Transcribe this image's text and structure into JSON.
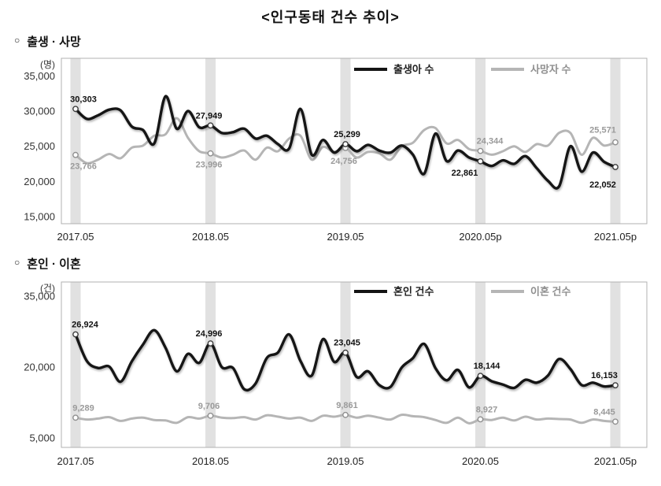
{
  "page": {
    "title": "<인구동태 건수 추이>",
    "sections": [
      {
        "bullet": "○",
        "label": "출생 · 사망"
      },
      {
        "bullet": "○",
        "label": "혼인 · 이혼"
      }
    ]
  },
  "colors": {
    "band": "#e1e1e1",
    "plot_border": "#b0b0b0",
    "axis_text": "#333333",
    "primary_line": "#141414",
    "secondary_line": "#b5b5b5",
    "primary_label": "#111111",
    "secondary_label": "#9a9a9a"
  },
  "chart_data": [
    {
      "type": "line",
      "title": "출생·사망",
      "unit_label": "(명)",
      "x_tick_labels": [
        "2017.05",
        "2018.05",
        "2019.05",
        "2020.05p",
        "2021.05p"
      ],
      "x_tick_indices": [
        0,
        12,
        24,
        36,
        48
      ],
      "y_ticks": [
        "35,000",
        "30,000",
        "25,000",
        "20,000",
        "15,000"
      ],
      "y_tick_values": [
        35000,
        30000,
        25000,
        20000,
        15000
      ],
      "ylim": [
        14000,
        37500
      ],
      "marker_indices": [
        0,
        12,
        24,
        36,
        48
      ],
      "legend": [
        {
          "key": "births",
          "label": "출생아 수",
          "color": "#141414",
          "text_color": "#222222"
        },
        {
          "key": "deaths",
          "label": "사망자 수",
          "color": "#b5b5b5",
          "text_color": "#8f8f8f"
        }
      ],
      "series": [
        {
          "key": "deaths",
          "name": "사망자 수",
          "color": "#b5b5b5",
          "width": 3,
          "shadow": false,
          "marker_stroke": "#8f8f8f",
          "label_color": "#9a9a9a",
          "values": [
            23766,
            22600,
            23100,
            23900,
            23300,
            24800,
            25100,
            26500,
            26700,
            29000,
            26200,
            24300,
            23996,
            23400,
            23800,
            24400,
            23100,
            24800,
            24300,
            26100,
            26500,
            23100,
            24900,
            24200,
            24756,
            23400,
            24200,
            24000,
            23100,
            25000,
            25500,
            27300,
            27600,
            25400,
            25900,
            24600,
            24344,
            23800,
            24300,
            25000,
            24200,
            25300,
            25100,
            26900,
            26900,
            23800,
            26200,
            25100,
            25571
          ],
          "annotations": [
            {
              "i": 0,
              "text": "23,766",
              "pos": "below",
              "dx": 10
            },
            {
              "i": 12,
              "text": "23,996",
              "pos": "below",
              "dx": -2
            },
            {
              "i": 24,
              "text": "24,756",
              "pos": "below",
              "dx": -2,
              "dy": 20
            },
            {
              "i": 36,
              "text": "24,344",
              "pos": "above",
              "dx": 12
            },
            {
              "i": 48,
              "text": "25,571",
              "pos": "above",
              "dx": -16,
              "dy": -12
            }
          ]
        },
        {
          "key": "births",
          "name": "출생아 수",
          "color": "#141414",
          "width": 3.4,
          "shadow": true,
          "marker_stroke": "#3c3c3c",
          "label_color": "#111111",
          "values": [
            30303,
            28900,
            29400,
            30200,
            30100,
            27800,
            27300,
            25400,
            32100,
            27500,
            30000,
            27700,
            27949,
            26900,
            27000,
            27500,
            26100,
            26500,
            25300,
            24700,
            30300,
            23800,
            25900,
            24100,
            25299,
            24300,
            25200,
            24400,
            24100,
            25100,
            23800,
            21100,
            26800,
            22900,
            24400,
            23400,
            22861,
            22200,
            23000,
            22500,
            23600,
            21900,
            20100,
            19300,
            25000,
            21400,
            24100,
            22800,
            22052
          ],
          "annotations": [
            {
              "i": 0,
              "text": "30,303",
              "pos": "above",
              "dx": 10
            },
            {
              "i": 12,
              "text": "27,949",
              "pos": "above",
              "dx": -2
            },
            {
              "i": 24,
              "text": "25,299",
              "pos": "above",
              "dx": 2
            },
            {
              "i": 36,
              "text": "22,861",
              "pos": "below",
              "dx": -20
            },
            {
              "i": 48,
              "text": "22,052",
              "pos": "below",
              "dx": -16,
              "dy": 26
            }
          ]
        }
      ]
    },
    {
      "type": "line",
      "title": "혼인·이혼",
      "unit_label": "(건)",
      "x_tick_labels": [
        "2017.05",
        "2018.05",
        "2019.05",
        "2020.05",
        "2021.05p"
      ],
      "x_tick_indices": [
        0,
        12,
        24,
        36,
        48
      ],
      "y_ticks": [
        "35,000",
        "20,000",
        "5,000"
      ],
      "y_tick_values": [
        35000,
        20000,
        5000
      ],
      "ylim": [
        3000,
        38000
      ],
      "marker_indices": [
        0,
        12,
        24,
        36,
        48
      ],
      "legend": [
        {
          "key": "marriages",
          "label": "혼인 건수",
          "color": "#141414",
          "text_color": "#222222"
        },
        {
          "key": "divorces",
          "label": "이혼 건수",
          "color": "#b5b5b5",
          "text_color": "#8f8f8f"
        }
      ],
      "series": [
        {
          "key": "divorces",
          "name": "이혼 건수",
          "color": "#b5b5b5",
          "width": 3,
          "shadow": false,
          "marker_stroke": "#8f8f8f",
          "label_color": "#9a9a9a",
          "values": [
            9289,
            8900,
            9100,
            9400,
            8600,
            9100,
            9300,
            8800,
            8700,
            8200,
            9400,
            9100,
            9706,
            9300,
            9200,
            9400,
            8900,
            9800,
            9500,
            9100,
            9300,
            8600,
            9700,
            9500,
            9861,
            9300,
            9700,
            9300,
            8900,
            9900,
            9600,
            9400,
            8800,
            8200,
            9300,
            8100,
            8927,
            8800,
            9300,
            8700,
            9500,
            8900,
            9100,
            9000,
            8900,
            8200,
            8900,
            8600,
            8445
          ],
          "annotations": [
            {
              "i": 0,
              "text": "9,289",
              "pos": "above",
              "dx": 10
            },
            {
              "i": 12,
              "text": "9,706",
              "pos": "above",
              "dx": -2
            },
            {
              "i": 24,
              "text": "9,861",
              "pos": "above",
              "dx": 2
            },
            {
              "i": 36,
              "text": "8,927",
              "pos": "above",
              "dx": 8
            },
            {
              "i": 48,
              "text": "8,445",
              "pos": "above",
              "dx": -14
            }
          ]
        },
        {
          "key": "marriages",
          "name": "혼인 건수",
          "color": "#141414",
          "width": 3.4,
          "shadow": true,
          "marker_stroke": "#3c3c3c",
          "label_color": "#111111",
          "values": [
            26924,
            21300,
            19800,
            20100,
            16900,
            21200,
            24800,
            27800,
            24100,
            19100,
            22800,
            20900,
            24996,
            20000,
            19800,
            15300,
            16500,
            21900,
            23100,
            26900,
            21300,
            18200,
            25900,
            21100,
            23045,
            17900,
            19100,
            16200,
            15800,
            19900,
            21900,
            24900,
            19800,
            17200,
            19400,
            15700,
            18144,
            17000,
            16300,
            15600,
            17300,
            16700,
            18200,
            21700,
            19600,
            16200,
            16700,
            15900,
            16153
          ],
          "annotations": [
            {
              "i": 0,
              "text": "26,924",
              "pos": "above",
              "dx": 12
            },
            {
              "i": 12,
              "text": "24,996",
              "pos": "above",
              "dx": -2
            },
            {
              "i": 24,
              "text": "23,045",
              "pos": "above",
              "dx": 2
            },
            {
              "i": 36,
              "text": "18,144",
              "pos": "above",
              "dx": 8
            },
            {
              "i": 48,
              "text": "16,153",
              "pos": "above",
              "dx": -14
            }
          ]
        }
      ]
    }
  ]
}
